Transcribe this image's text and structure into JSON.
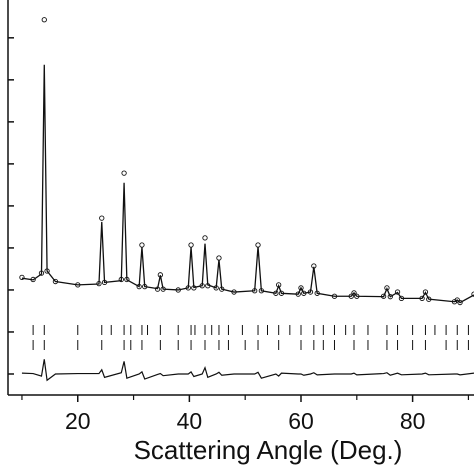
{
  "chart_data": {
    "type": "line",
    "xlabel": "Scattering Angle (Deg.)",
    "x": [
      10,
      12,
      13.5,
      14,
      14.5,
      16,
      20,
      23.8,
      24.3,
      24.8,
      27.8,
      28.3,
      28.8,
      31,
      31.5,
      32,
      34.3,
      34.8,
      35.3,
      38,
      39.8,
      40.3,
      40.8,
      42.3,
      42.8,
      43.3,
      44.8,
      45.3,
      45.8,
      48,
      51.7,
      52.3,
      52.9,
      55.5,
      56,
      56.5,
      59.5,
      60,
      60.5,
      61.7,
      62.3,
      62.9,
      66,
      69,
      69.5,
      70,
      74.8,
      75.4,
      76,
      77.3,
      78,
      81.7,
      82.3,
      82.9,
      87.5,
      88,
      88.5,
      91
    ],
    "observed": [
      2.3,
      2.25,
      2.4,
      8.43,
      2.45,
      2.2,
      2.12,
      2.15,
      3.71,
      2.18,
      2.25,
      4.78,
      2.25,
      2.08,
      3.07,
      2.08,
      2.02,
      2.36,
      2.02,
      2.0,
      2.05,
      3.07,
      2.05,
      2.1,
      3.24,
      2.1,
      2.05,
      2.76,
      2.02,
      1.95,
      1.98,
      3.07,
      1.98,
      1.92,
      2.12,
      1.92,
      1.9,
      2.05,
      1.92,
      1.95,
      2.57,
      1.92,
      1.85,
      1.85,
      1.93,
      1.85,
      1.85,
      2.05,
      1.84,
      1.95,
      1.8,
      1.8,
      1.95,
      1.78,
      1.72,
      1.76,
      1.7,
      1.9
    ],
    "calculated": [
      2.28,
      2.24,
      2.38,
      7.36,
      2.45,
      2.2,
      2.12,
      2.14,
      3.62,
      2.18,
      2.22,
      4.55,
      2.24,
      2.08,
      3.02,
      2.08,
      2.03,
      2.35,
      2.02,
      2.0,
      2.05,
      3.02,
      2.06,
      2.1,
      3.1,
      2.12,
      2.05,
      2.72,
      2.02,
      1.95,
      1.98,
      3.03,
      1.98,
      1.92,
      2.1,
      1.92,
      1.9,
      2.05,
      1.92,
      1.95,
      2.55,
      1.92,
      1.85,
      1.85,
      1.93,
      1.85,
      1.84,
      2.03,
      1.84,
      1.94,
      1.8,
      1.8,
      1.94,
      1.78,
      1.72,
      1.76,
      1.7,
      1.88
    ],
    "difference": [
      0.02,
      0.01,
      -0.05,
      0.35,
      -0.15,
      0,
      0.01,
      0.01,
      0.1,
      -0.08,
      0.03,
      0.3,
      -0.1,
      0,
      0.05,
      -0.12,
      -0.01,
      0.01,
      -0.04,
      0,
      0,
      0.05,
      -0.06,
      0,
      0.15,
      -0.08,
      0,
      0.04,
      -0.03,
      0,
      0,
      0.04,
      -0.1,
      0,
      -0.05,
      0.02,
      0,
      0,
      -0.03,
      0,
      0.03,
      -0.02,
      0,
      0,
      0.02,
      -0.02,
      0.01,
      0.03,
      -0.03,
      0.02,
      -0.02,
      0,
      0.02,
      -0.02,
      0,
      0,
      -0.02,
      0.02
    ],
    "reflections": [
      [
        12,
        14,
        20,
        24.3,
        26,
        28.3,
        29.5,
        31.5,
        32.5,
        34.8,
        38,
        40.3,
        41,
        42.8,
        44,
        45.3,
        47,
        49.5,
        52.3,
        54,
        56,
        58,
        60,
        62.3,
        64,
        66,
        68,
        69.5,
        72,
        75.4,
        77.3,
        80,
        82.3,
        84,
        86,
        88,
        90
      ],
      [
        12,
        14,
        20,
        24.3,
        28.3,
        29.5,
        31.5,
        34.8,
        38,
        40.3,
        42.8,
        45.3,
        47,
        50,
        52.3,
        56,
        60,
        62.3,
        64,
        66,
        69.5,
        72,
        75.4,
        77.3,
        80,
        82.3,
        86,
        88,
        90
      ]
    ],
    "color": "#111111",
    "xlim": [
      7.5,
      91
    ],
    "xticks": [
      20,
      40,
      60,
      80
    ],
    "xminorticks": [
      10,
      30,
      50,
      70,
      90
    ],
    "ylim": [
      -0.5,
      8.9
    ],
    "yticks": [
      0,
      1,
      2,
      3,
      4,
      5,
      6,
      7,
      8
    ]
  }
}
